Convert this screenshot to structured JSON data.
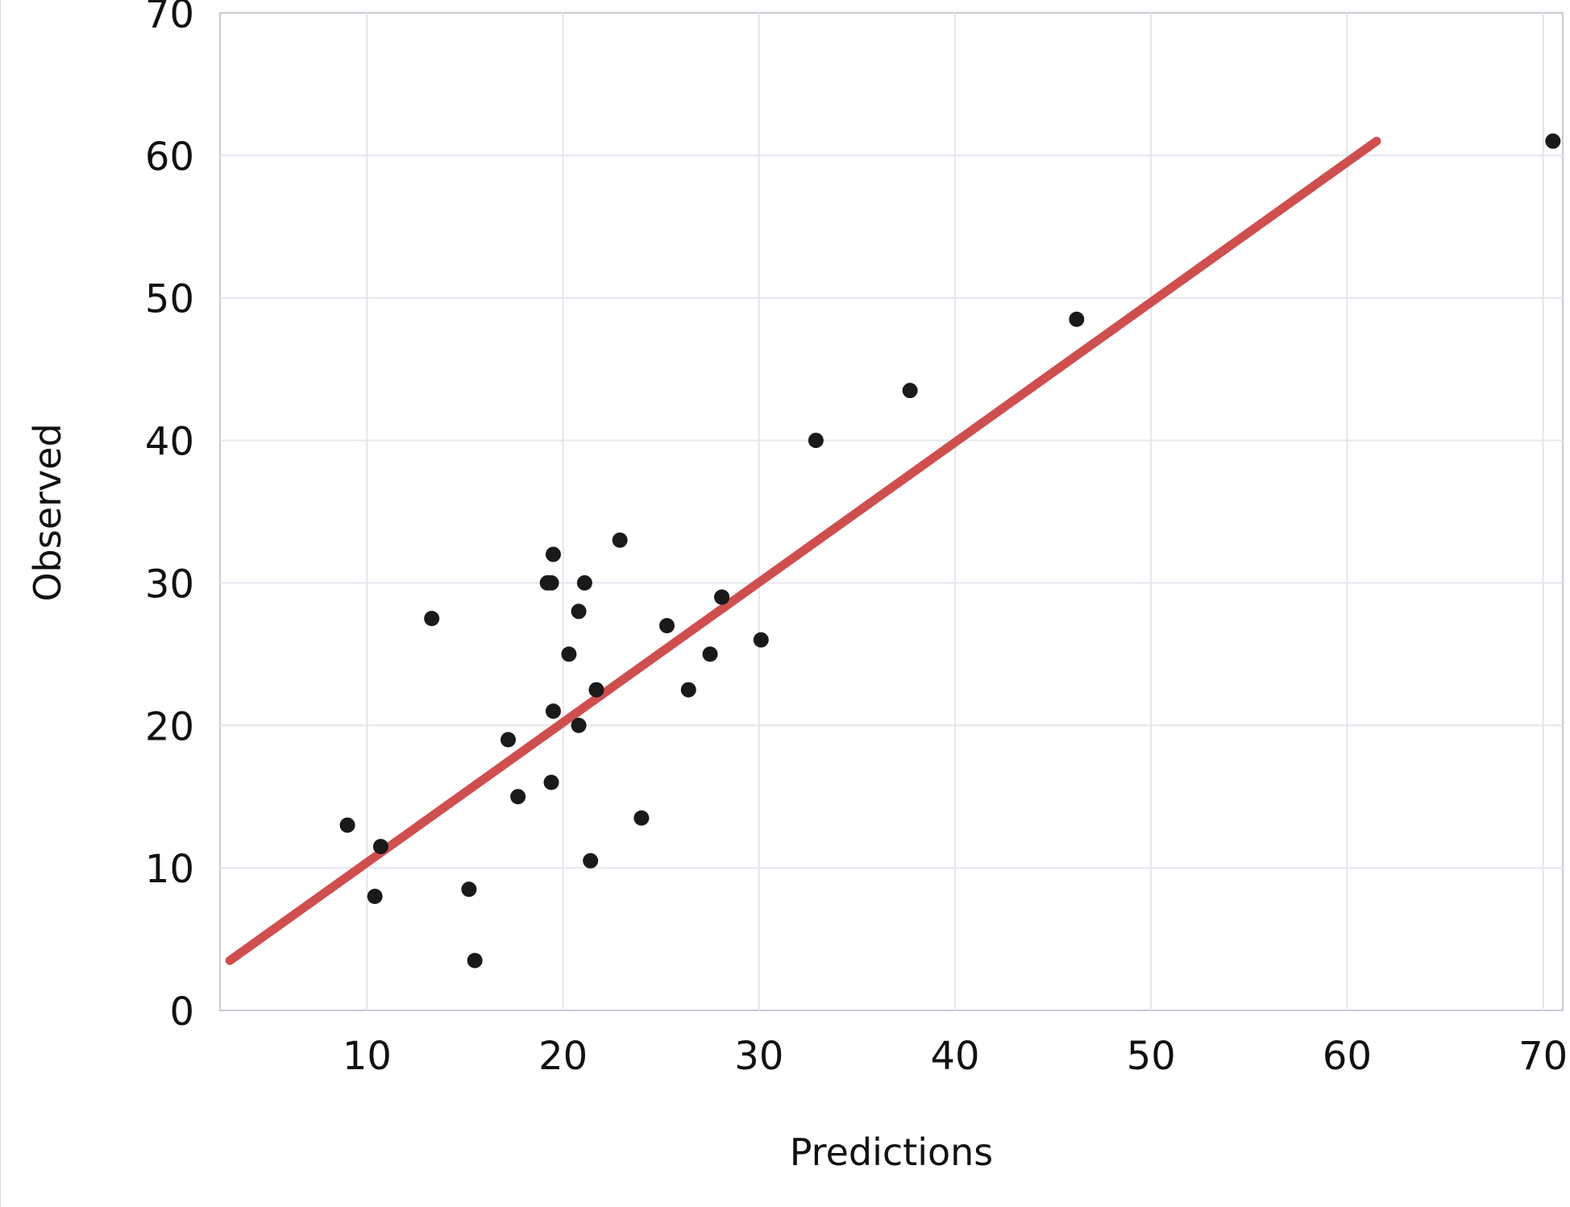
{
  "chart_data": {
    "type": "scatter",
    "title": "",
    "xlabel": "Predictions",
    "ylabel": "Observed",
    "xlim": [
      2.5,
      71
    ],
    "ylim": [
      0,
      70
    ],
    "x_ticks": [
      10,
      20,
      30,
      40,
      50,
      60,
      70
    ],
    "y_ticks": [
      0,
      10,
      20,
      30,
      40,
      50,
      60,
      70
    ],
    "grid": true,
    "series": [
      {
        "type": "scatter",
        "color": "#1a1a1a",
        "points": [
          {
            "x": 9.0,
            "y": 13.0
          },
          {
            "x": 10.4,
            "y": 8.0
          },
          {
            "x": 10.7,
            "y": 11.5
          },
          {
            "x": 13.3,
            "y": 27.5
          },
          {
            "x": 15.2,
            "y": 8.5
          },
          {
            "x": 15.5,
            "y": 3.5
          },
          {
            "x": 17.2,
            "y": 19.0
          },
          {
            "x": 17.7,
            "y": 15.0
          },
          {
            "x": 19.2,
            "y": 30.0
          },
          {
            "x": 19.4,
            "y": 30.0
          },
          {
            "x": 19.4,
            "y": 16.0
          },
          {
            "x": 19.5,
            "y": 21.0
          },
          {
            "x": 19.5,
            "y": 32.0
          },
          {
            "x": 20.3,
            "y": 25.0
          },
          {
            "x": 20.8,
            "y": 28.0
          },
          {
            "x": 20.8,
            "y": 20.0
          },
          {
            "x": 21.1,
            "y": 30.0
          },
          {
            "x": 21.4,
            "y": 10.5
          },
          {
            "x": 21.7,
            "y": 22.5
          },
          {
            "x": 22.9,
            "y": 33.0
          },
          {
            "x": 24.0,
            "y": 13.5
          },
          {
            "x": 25.3,
            "y": 27.0
          },
          {
            "x": 26.4,
            "y": 22.5
          },
          {
            "x": 27.5,
            "y": 25.0
          },
          {
            "x": 28.1,
            "y": 29.0
          },
          {
            "x": 28.1,
            "y": 29.0
          },
          {
            "x": 30.1,
            "y": 26.0
          },
          {
            "x": 32.9,
            "y": 40.0
          },
          {
            "x": 37.7,
            "y": 43.5
          },
          {
            "x": 46.2,
            "y": 48.5
          },
          {
            "x": 70.5,
            "y": 61.0
          }
        ]
      },
      {
        "type": "line",
        "color": "#cf4f4f",
        "points": [
          {
            "x": 3.0,
            "y": 3.5
          },
          {
            "x": 61.5,
            "y": 61.0
          }
        ]
      }
    ]
  }
}
